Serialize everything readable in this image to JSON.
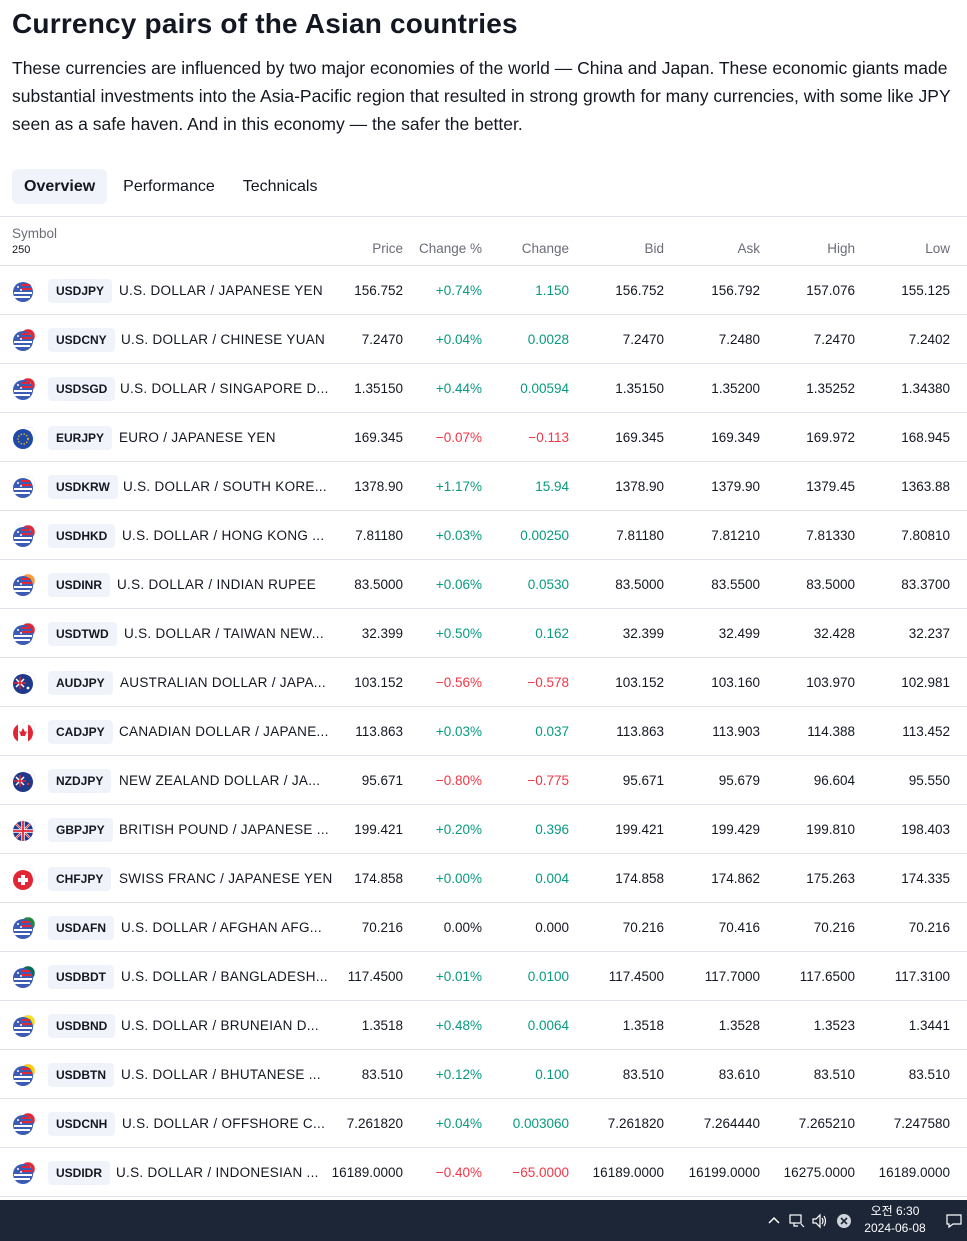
{
  "page": {
    "title": "Currency pairs of the Asian countries",
    "description": "These currencies are influenced by two major economies of the world — China and Japan. These economic giants made substantial investments into the Asia-Pacific region that resulted in strong growth for many currencies, with some like JPY seen as a safe haven. And in this economy — the safer the better."
  },
  "tabs": [
    {
      "label": "Overview",
      "active": true
    },
    {
      "label": "Performance",
      "active": false
    },
    {
      "label": "Technicals",
      "active": false
    }
  ],
  "table": {
    "headers": {
      "symbol": "Symbol",
      "count": "250",
      "price": "Price",
      "change_pct": "Change %",
      "change": "Change",
      "bid": "Bid",
      "ask": "Ask",
      "high": "High",
      "low": "Low"
    },
    "rows": [
      {
        "ticker": "USDJPY",
        "name": "U.S. DOLLAR / JAPANESE YEN",
        "price": "156.752",
        "change_pct": "+0.74%",
        "change": "1.150",
        "bid": "156.752",
        "ask": "156.792",
        "high": "157.076",
        "low": "155.125",
        "dir": "pos",
        "flag": "us-jp"
      },
      {
        "ticker": "USDCNY",
        "name": "U.S. DOLLAR / CHINESE YUAN",
        "price": "7.2470",
        "change_pct": "+0.04%",
        "change": "0.0028",
        "bid": "7.2470",
        "ask": "7.2480",
        "high": "7.2470",
        "low": "7.2402",
        "dir": "pos",
        "flag": "us-cn"
      },
      {
        "ticker": "USDSGD",
        "name": "U.S. DOLLAR / SINGAPORE D...",
        "price": "1.35150",
        "change_pct": "+0.44%",
        "change": "0.00594",
        "bid": "1.35150",
        "ask": "1.35200",
        "high": "1.35252",
        "low": "1.34380",
        "dir": "pos",
        "flag": "us-sg"
      },
      {
        "ticker": "EURJPY",
        "name": "EURO / JAPANESE YEN",
        "price": "169.345",
        "change_pct": "−0.07%",
        "change": "−0.113",
        "bid": "169.345",
        "ask": "169.349",
        "high": "169.972",
        "low": "168.945",
        "dir": "neg",
        "flag": "eu-jp"
      },
      {
        "ticker": "USDKRW",
        "name": "U.S. DOLLAR / SOUTH KORE...",
        "price": "1378.90",
        "change_pct": "+1.17%",
        "change": "15.94",
        "bid": "1378.90",
        "ask": "1379.90",
        "high": "1379.45",
        "low": "1363.88",
        "dir": "pos",
        "flag": "us-kr"
      },
      {
        "ticker": "USDHKD",
        "name": "U.S. DOLLAR / HONG KONG ...",
        "price": "7.81180",
        "change_pct": "+0.03%",
        "change": "0.00250",
        "bid": "7.81180",
        "ask": "7.81210",
        "high": "7.81330",
        "low": "7.80810",
        "dir": "pos",
        "flag": "us-hk"
      },
      {
        "ticker": "USDINR",
        "name": "U.S. DOLLAR / INDIAN RUPEE",
        "price": "83.5000",
        "change_pct": "+0.06%",
        "change": "0.0530",
        "bid": "83.5000",
        "ask": "83.5500",
        "high": "83.5000",
        "low": "83.3700",
        "dir": "pos",
        "flag": "us-in"
      },
      {
        "ticker": "USDTWD",
        "name": "U.S. DOLLAR / TAIWAN NEW...",
        "price": "32.399",
        "change_pct": "+0.50%",
        "change": "0.162",
        "bid": "32.399",
        "ask": "32.499",
        "high": "32.428",
        "low": "32.237",
        "dir": "pos",
        "flag": "us-tw"
      },
      {
        "ticker": "AUDJPY",
        "name": "AUSTRALIAN DOLLAR / JAPA...",
        "price": "103.152",
        "change_pct": "−0.56%",
        "change": "−0.578",
        "bid": "103.152",
        "ask": "103.160",
        "high": "103.970",
        "low": "102.981",
        "dir": "neg",
        "flag": "au-jp"
      },
      {
        "ticker": "CADJPY",
        "name": "CANADIAN DOLLAR / JAPANE...",
        "price": "113.863",
        "change_pct": "+0.03%",
        "change": "0.037",
        "bid": "113.863",
        "ask": "113.903",
        "high": "114.388",
        "low": "113.452",
        "dir": "pos",
        "flag": "ca-jp"
      },
      {
        "ticker": "NZDJPY",
        "name": "NEW ZEALAND DOLLAR / JA...",
        "price": "95.671",
        "change_pct": "−0.80%",
        "change": "−0.775",
        "bid": "95.671",
        "ask": "95.679",
        "high": "96.604",
        "low": "95.550",
        "dir": "neg",
        "flag": "nz-jp"
      },
      {
        "ticker": "GBPJPY",
        "name": "BRITISH POUND / JAPANESE ...",
        "price": "199.421",
        "change_pct": "+0.20%",
        "change": "0.396",
        "bid": "199.421",
        "ask": "199.429",
        "high": "199.810",
        "low": "198.403",
        "dir": "pos",
        "flag": "gb-jp"
      },
      {
        "ticker": "CHFJPY",
        "name": "SWISS FRANC / JAPANESE YEN",
        "price": "174.858",
        "change_pct": "+0.00%",
        "change": "0.004",
        "bid": "174.858",
        "ask": "174.862",
        "high": "175.263",
        "low": "174.335",
        "dir": "pos",
        "flag": "ch-jp"
      },
      {
        "ticker": "USDAFN",
        "name": "U.S. DOLLAR / AFGHAN AFG...",
        "price": "70.216",
        "change_pct": "0.00%",
        "change": "0.000",
        "bid": "70.216",
        "ask": "70.416",
        "high": "70.216",
        "low": "70.216",
        "dir": "neu",
        "flag": "us-af"
      },
      {
        "ticker": "USDBDT",
        "name": "U.S. DOLLAR / BANGLADESH...",
        "price": "117.4500",
        "change_pct": "+0.01%",
        "change": "0.0100",
        "bid": "117.4500",
        "ask": "117.7000",
        "high": "117.6500",
        "low": "117.3100",
        "dir": "pos",
        "flag": "us-bd"
      },
      {
        "ticker": "USDBND",
        "name": "U.S. DOLLAR / BRUNEIAN D...",
        "price": "1.3518",
        "change_pct": "+0.48%",
        "change": "0.0064",
        "bid": "1.3518",
        "ask": "1.3528",
        "high": "1.3523",
        "low": "1.3441",
        "dir": "pos",
        "flag": "us-bn"
      },
      {
        "ticker": "USDBTN",
        "name": "U.S. DOLLAR / BHUTANESE ...",
        "price": "83.510",
        "change_pct": "+0.12%",
        "change": "0.100",
        "bid": "83.510",
        "ask": "83.610",
        "high": "83.510",
        "low": "83.510",
        "dir": "pos",
        "flag": "us-bt"
      },
      {
        "ticker": "USDCNH",
        "name": "U.S. DOLLAR / OFFSHORE C...",
        "price": "7.261820",
        "change_pct": "+0.04%",
        "change": "0.003060",
        "bid": "7.261820",
        "ask": "7.264440",
        "high": "7.265210",
        "low": "7.247580",
        "dir": "pos",
        "flag": "us-cn"
      },
      {
        "ticker": "USDIDR",
        "name": "U.S. DOLLAR / INDONESIAN ...",
        "price": "16189.0000",
        "change_pct": "−0.40%",
        "change": "−65.0000",
        "bid": "16189.0000",
        "ask": "16199.0000",
        "high": "16275.0000",
        "low": "16189.0000",
        "dir": "neg",
        "flag": "us-id"
      }
    ]
  },
  "taskbar": {
    "time": "오전 6:30",
    "date": "2024-06-08"
  },
  "colors": {
    "positive": "#089981",
    "negative": "#f23645",
    "taskbar": "#1c2637"
  }
}
